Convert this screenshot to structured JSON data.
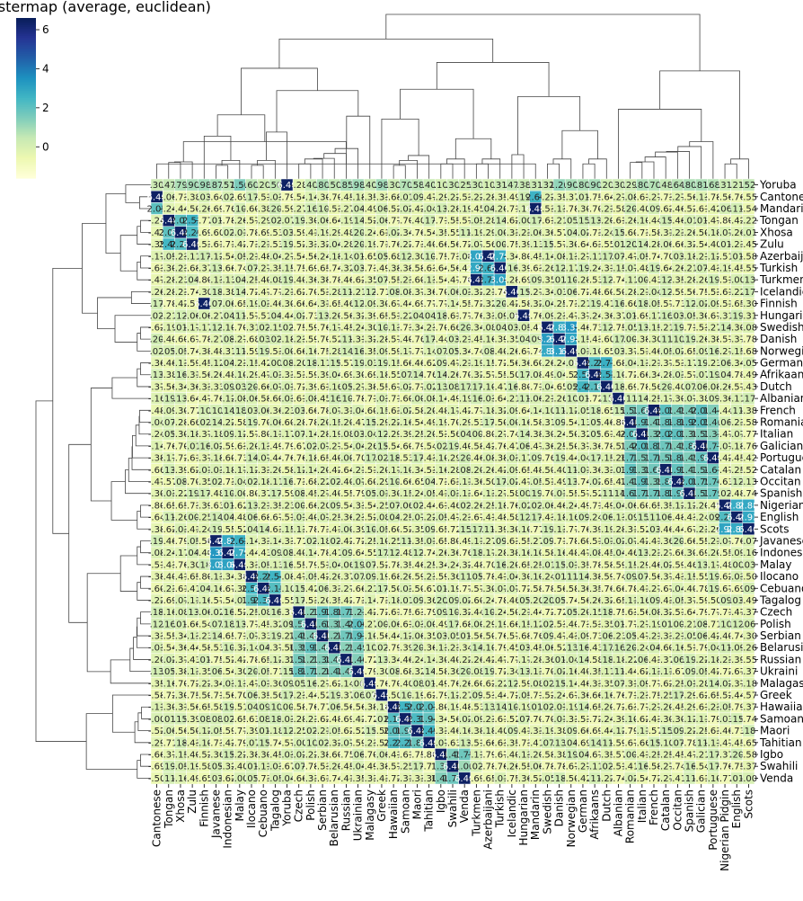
{
  "chart_data": {
    "type": "heatmap",
    "title": "Clustermap (average, euclidean)",
    "languages": [
      "Yoruba",
      "Cantonese",
      "Mandarin",
      "Tongan",
      "Xhosa",
      "Zulu",
      "Azerbaijani",
      "Turkish",
      "Turkmen",
      "Icelandic",
      "Finnish",
      "Hungarian",
      "Swedish",
      "Danish",
      "Norwegian",
      "German",
      "Afrikaans",
      "Dutch",
      "Albanian",
      "French",
      "Romanian",
      "Italian",
      "Galician",
      "Portuguese",
      "Catalan",
      "Occitan",
      "Spanish",
      "Nigerian Pidgin",
      "English",
      "Scots",
      "Javanese",
      "Indonesian",
      "Malay",
      "Ilocano",
      "Cebuano",
      "Tagalog",
      "Czech",
      "Polish",
      "Serbian",
      "Belarusian",
      "Russian",
      "Ukrainian",
      "Malagasy",
      "Greek",
      "Hawaiian",
      "Samoan",
      "Maori",
      "Tahitian",
      "Igbo",
      "Swahili",
      "Venda"
    ],
    "row_order": [
      "Yoruba",
      "Cantonese",
      "Mandarin",
      "Tongan",
      "Xhosa",
      "Zulu",
      "Azerbaijani",
      "Turkish",
      "Turkmen",
      "Icelandic",
      "Finnish",
      "Hungarian",
      "Swedish",
      "Danish",
      "Norwegian",
      "German",
      "Afrikaans",
      "Dutch",
      "Albanian",
      "French",
      "Romanian",
      "Italian",
      "Galician",
      "Portuguese",
      "Catalan",
      "Occitan",
      "Spanish",
      "Nigerian Pidgin",
      "English",
      "Scots",
      "Javanese",
      "Indonesian",
      "Malay",
      "Ilocano",
      "Cebuano",
      "Tagalog",
      "Czech",
      "Polish",
      "Serbian",
      "Belarusian",
      "Russian",
      "Ukrainian",
      "Malagasy",
      "Greek",
      "Hawaiian",
      "Samoan",
      "Maori",
      "Tahitian",
      "Igbo",
      "Swahili",
      "Venda"
    ],
    "col_order": [
      "Cantonese",
      "Tongan",
      "Xhosa",
      "Zulu",
      "Finnish",
      "Javanese",
      "Indonesian",
      "Malay",
      "Ilocano",
      "Cebuano",
      "Tagalog",
      "Yoruba",
      "Czech",
      "Polish",
      "Serbian",
      "Belarusian",
      "Russian",
      "Ukrainian",
      "Malagasy",
      "Greek",
      "Hawaiian",
      "Samoan",
      "Maori",
      "Tahitian",
      "Igbo",
      "Swahili",
      "Venda",
      "Turkmen",
      "Azerbaijani",
      "Turkish",
      "Icelandic",
      "Hungarian",
      "Mandarin",
      "Swedish",
      "Danish",
      "Norwegian",
      "German",
      "Afrikaans",
      "Dutch",
      "Albanian",
      "Romanian",
      "Italian",
      "French",
      "Catalan",
      "Occitan",
      "Spanish",
      "Galician",
      "Portuguese",
      "Nigerian Pidgin",
      "English",
      "Scots"
    ],
    "row_tick_labels": [
      "Yoruba",
      "Cantonese",
      "Mandarin",
      "Tongan",
      "Xhosa",
      "Zulu",
      "Azerbaijani",
      "Turkish",
      "Turkmen",
      "Icelandic",
      "Finnish",
      "Hungarian",
      "Swedish",
      "Danish",
      "Norwegian",
      "German",
      "Afrikaans",
      "Dutch",
      "Albanian",
      "French",
      "Romanian",
      "Italian",
      "Galician",
      "Portuguese",
      "Catalan",
      "Occitan",
      "Spanish",
      "Nigerian",
      "English",
      "Scots",
      "Javanese",
      "Indonesi",
      "Malay",
      "Ilocano",
      "Cebuano",
      "Tagalog",
      "Czech",
      "Polish",
      "Serbian",
      "Belarusi",
      "Russian",
      "Ukraini",
      "Malagasy",
      "Greek",
      "Hawaiia",
      "Samoan",
      "Maori",
      "Tahitian",
      "Igbo",
      "Swahili",
      "Venda"
    ],
    "col_tick_labels": [
      "Cantonese",
      "Tongan",
      "Xhosa",
      "Zulu",
      "Finnish",
      "Javanese",
      "Indonesian",
      "Malay",
      "Ilocano",
      "Cebuano",
      "Tagalog",
      "Yoruba",
      "Czech",
      "Polish",
      "Serbian",
      "Belarusian",
      "Russian",
      "Ukrainian",
      "Malagasy",
      "Greek",
      "Hawaiian",
      "Samoan",
      "Maori",
      "Tahitian",
      "Igbo",
      "Swahili",
      "Venda",
      "Turkmen",
      "Azerbaijani",
      "Turkish",
      "Icelandic",
      "Hungarian",
      "Mandarin",
      "Swedish",
      "Danish",
      "Norwegian",
      "German",
      "Afrikaans",
      "Dutch",
      "Albanian",
      "Romanian",
      "Italian",
      "French",
      "Catalan",
      "Occitan",
      "Spanish",
      "Galician",
      "Portuguese",
      "Nigerian Pidgin",
      "English",
      "Scots"
    ],
    "diagonal_value": 6.4,
    "colorbar": {
      "cmap": "YlGnBu",
      "vmin": -1.6,
      "vmax": 6.6,
      "ticks": [
        0,
        2,
        4,
        6
      ]
    },
    "clusters": [
      {
        "members": [
          "Cantonese",
          "Mandarin"
        ],
        "value": 2.4
      },
      {
        "members": [
          "Tongan",
          "Xhosa",
          "Zulu"
        ],
        "value": 2.2
      },
      {
        "members": [
          "Azerbaijani",
          "Turkish",
          "Turkmen"
        ],
        "value": 2.9
      },
      {
        "members": [
          "Swedish",
          "Danish",
          "Norwegian"
        ],
        "value": 3.1
      },
      {
        "members": [
          "German",
          "Afrikaans",
          "Dutch"
        ],
        "value": 2.4
      },
      {
        "members": [
          "French",
          "Romanian",
          "Italian",
          "Galician",
          "Portuguese",
          "Catalan",
          "Occitan",
          "Spanish"
        ],
        "value": 1.7
      },
      {
        "members": [
          "Nigerian Pidgin",
          "English",
          "Scots"
        ],
        "value": 2.6
      },
      {
        "members": [
          "Javanese",
          "Indonesian",
          "Malay"
        ],
        "value": 3.0
      },
      {
        "members": [
          "Ilocano",
          "Cebuano",
          "Tagalog"
        ],
        "value": 2.3
      },
      {
        "members": [
          "Czech",
          "Polish",
          "Serbian",
          "Belarusian",
          "Russian",
          "Ukrainian"
        ],
        "value": 1.6
      },
      {
        "members": [
          "Hawaiian",
          "Samoan",
          "Maori",
          "Tahitian"
        ],
        "value": 2.2
      },
      {
        "members": [
          "Igbo",
          "Swahili",
          "Venda"
        ],
        "value": 1.4
      }
    ],
    "background_value": -0.3,
    "yoruba_row": [
      0.3,
      0.47,
      0.79,
      0.9,
      0.98,
      0.87,
      0.57,
      1.5,
      0.6,
      0.2,
      0.5,
      6.4,
      -0.28,
      0.4,
      0.8,
      0.5,
      0.85,
      0.98,
      0.4,
      0.98,
      0.3,
      0.7,
      0.58,
      0.4,
      0.1,
      0.3,
      0.25,
      0.3,
      0.1,
      0.31,
      0.47,
      0.38,
      0.31,
      0.32,
      1.2,
      0.9,
      0.8,
      0.9,
      0.2,
      0.3,
      0.29,
      0.8,
      0.7,
      0.48,
      0.64,
      0.8,
      0.81,
      0.68,
      0.31,
      0.21,
      0.52
    ]
  }
}
